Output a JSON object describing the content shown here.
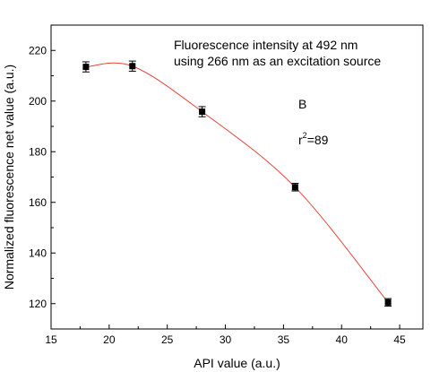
{
  "chart_data": {
    "type": "scatter",
    "title": "",
    "xlabel": "API value (a.u.)",
    "ylabel": "Normalized fluorescence net value (a.u.)",
    "xlim": [
      15,
      47
    ],
    "ylim": [
      110,
      230
    ],
    "x_ticks": [
      15,
      20,
      25,
      30,
      35,
      40,
      45
    ],
    "y_ticks": [
      120,
      140,
      160,
      180,
      200,
      220
    ],
    "grid": false,
    "series": [
      {
        "x": [
          18,
          22,
          28,
          36,
          44
        ],
        "y": [
          213.5,
          213.8,
          195.8,
          166,
          120.5
        ],
        "error": [
          2,
          2,
          2,
          1.5,
          1.5
        ],
        "marker": "square",
        "marker_color": "#000000",
        "fit_line_color": "#e8463a"
      }
    ],
    "annotations": [
      {
        "text_line1": "Fluorescence intensity at 492 nm",
        "text_line2": "using 266 nm as an excitation source"
      },
      {
        "text": "B"
      },
      {
        "r_label": "r",
        "superscript": "2",
        "value_text": "=89"
      }
    ]
  }
}
